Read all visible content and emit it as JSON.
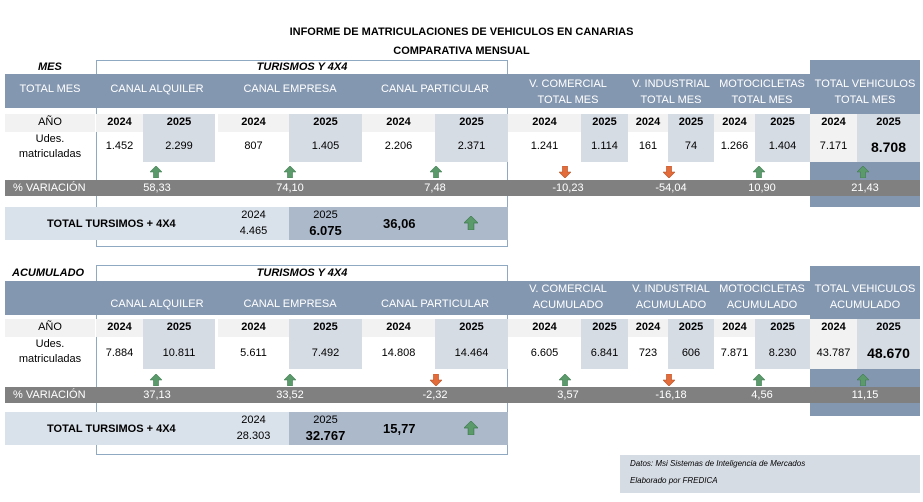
{
  "report": {
    "title": "INFORME DE MATRICULACIONES DE VEHICULOS EN CANARIAS",
    "subtitle": "COMPARATIVA MENSUAL"
  },
  "mes": {
    "section_label": "MES",
    "group_label": "TURISMOS Y 4X4",
    "row_header": "TOTAL MES",
    "columns": [
      "CANAL ALQUILER",
      "CANAL EMPRESA",
      "CANAL PARTICULAR",
      "V. COMERCIAL",
      "TOTAL MES",
      "V. INDUSTRIAL",
      "TOTAL MES",
      "MOTOCICLETAS",
      "TOTAL MES",
      "TOTAL VEHICULOS",
      "TOTAL MES"
    ],
    "year_label": "AÑO",
    "units_label_1": "Udes.",
    "units_label_2": "matriculadas",
    "years": [
      "2024",
      "2025"
    ],
    "values": {
      "alquiler_2024": "1.452",
      "alquiler_2025": "2.299",
      "empresa_2024": "807",
      "empresa_2025": "1.405",
      "particular_2024": "2.206",
      "particular_2025": "2.371",
      "comercial_2024": "1.241",
      "comercial_2025": "1.114",
      "industrial_2024": "161",
      "industrial_2025": "74",
      "moto_2024": "1.266",
      "moto_2025": "1.404",
      "total_2024": "7.171",
      "total_2025": "8.708"
    },
    "variation_label": "% VARIACIÓN",
    "variation": {
      "alquiler": "58,33",
      "empresa": "74,10",
      "particular": "7,48",
      "comercial": "-10,23",
      "industrial": "-54,04",
      "moto": "10,90",
      "total": "21,43"
    },
    "total_turismos_label": "TOTAL TURSIMOS + 4X4",
    "total_turismos_2024": "4.465",
    "total_turismos_2025": "6.075",
    "total_turismos_var": "36,06"
  },
  "acumulado": {
    "section_label": "ACUMULADO",
    "group_label": "TURISMOS Y 4X4",
    "columns": [
      "CANAL ALQUILER",
      "CANAL EMPRESA",
      "CANAL PARTICULAR",
      "V. COMERCIAL",
      "ACUMULADO",
      "V. INDUSTRIAL",
      "ACUMULADO",
      "MOTOCICLETAS",
      "ACUMULADO",
      "TOTAL VEHICULOS",
      "ACUMULADO"
    ],
    "year_label": "AÑO",
    "units_label_1": "Udes.",
    "units_label_2": "matriculadas",
    "years": [
      "2024",
      "2025"
    ],
    "values": {
      "alquiler_2024": "7.884",
      "alquiler_2025": "10.811",
      "empresa_2024": "5.611",
      "empresa_2025": "7.492",
      "particular_2024": "14.808",
      "particular_2025": "14.464",
      "comercial_2024": "6.605",
      "comercial_2025": "6.841",
      "industrial_2024": "723",
      "industrial_2025": "606",
      "moto_2024": "7.871",
      "moto_2025": "8.230",
      "total_2024": "43.787",
      "total_2025": "48.670"
    },
    "variation_label": "% VARIACIÓN",
    "variation": {
      "alquiler": "37,13",
      "empresa": "33,52",
      "particular": "-2,32",
      "comercial": "3,57",
      "industrial": "-16,18",
      "moto": "4,56",
      "total": "11,15"
    },
    "total_turismos_label": "TOTAL TURSIMOS + 4X4",
    "total_turismos_2024": "28.303",
    "total_turismos_2025": "32.767",
    "total_turismos_var": "15,77"
  },
  "footer": {
    "line1": "Datos: Msi Sistemas de Inteligencia de Mercados",
    "line2": "Elaborado por FREDICA"
  },
  "colors": {
    "header": "#8497b0",
    "highlight": "#d6dce4",
    "variation_bar": "#808080",
    "arrow_up": "#5b9b6b",
    "arrow_down": "#e46c3a"
  }
}
